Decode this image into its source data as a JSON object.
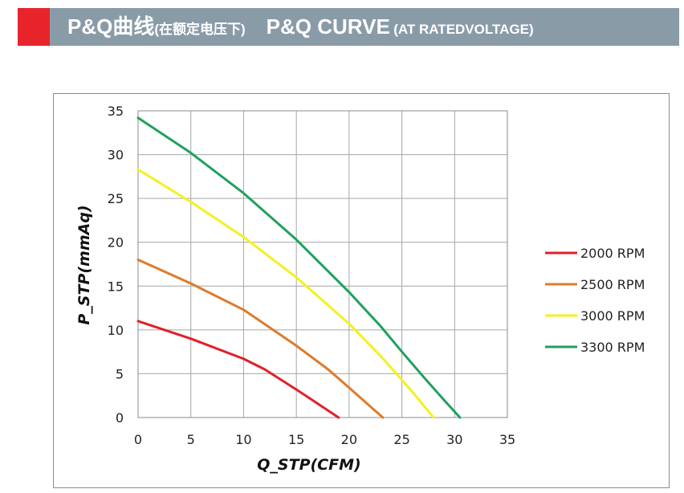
{
  "header": {
    "title_cn": "P&Q曲线",
    "title_cn_sub": "(在额定电压下)",
    "title_en": "P&Q CURVE",
    "title_en_sub": "(AT RATEDVOLTAGE)",
    "colors": {
      "accent": "#e8242b",
      "bar": "#8a9ba8"
    }
  },
  "chart_data": {
    "type": "line",
    "title": "",
    "xlabel": "Q_STP(CFM)",
    "ylabel": "P_STP(mmAq)",
    "xlim": [
      0,
      35
    ],
    "ylim": [
      0,
      35
    ],
    "xticks": [
      0,
      5,
      10,
      15,
      20,
      25,
      30,
      35
    ],
    "yticks": [
      0,
      5,
      10,
      15,
      20,
      25,
      30,
      35
    ],
    "grid": true,
    "legend_position": "right",
    "series": [
      {
        "name": "2000 RPM",
        "color": "#e0202a",
        "points": [
          [
            0,
            11
          ],
          [
            5,
            9
          ],
          [
            10,
            6.7
          ],
          [
            12,
            5.5
          ],
          [
            15,
            3.2
          ],
          [
            17,
            1.6
          ],
          [
            19,
            0
          ]
        ]
      },
      {
        "name": "2500 RPM",
        "color": "#e07b2a",
        "points": [
          [
            0,
            18
          ],
          [
            5,
            15.3
          ],
          [
            10,
            12.3
          ],
          [
            15,
            8.2
          ],
          [
            18,
            5.5
          ],
          [
            20,
            3.4
          ],
          [
            21.5,
            1.8
          ],
          [
            23.2,
            0
          ]
        ]
      },
      {
        "name": "3000 RPM",
        "color": "#f5f020",
        "points": [
          [
            0,
            28.3
          ],
          [
            5,
            24.6
          ],
          [
            10,
            20.6
          ],
          [
            15,
            16
          ],
          [
            20,
            10.7
          ],
          [
            23,
            7
          ],
          [
            25,
            4.3
          ],
          [
            26.5,
            2.2
          ],
          [
            28,
            0
          ]
        ]
      },
      {
        "name": "3300 RPM",
        "color": "#20a060",
        "points": [
          [
            0,
            34.2
          ],
          [
            5,
            30.2
          ],
          [
            10,
            25.6
          ],
          [
            15,
            20.3
          ],
          [
            20,
            14.3
          ],
          [
            23,
            10.4
          ],
          [
            25,
            7.5
          ],
          [
            27,
            4.7
          ],
          [
            29,
            2
          ],
          [
            30.5,
            0
          ]
        ]
      }
    ]
  }
}
